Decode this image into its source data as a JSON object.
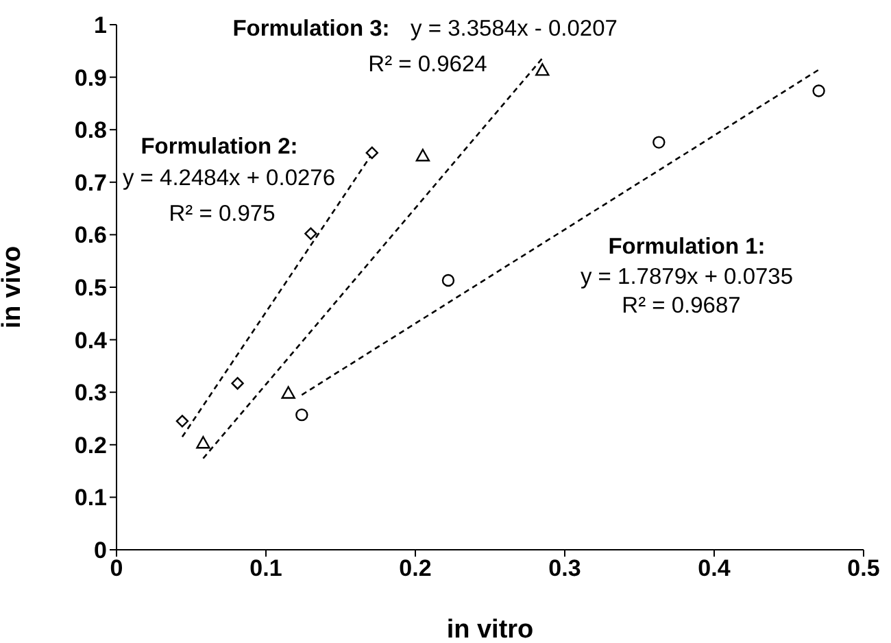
{
  "chart_data": {
    "type": "scatter",
    "xlabel": "in vitro",
    "ylabel": "in vivo",
    "xlim": [
      0,
      0.5
    ],
    "xticks": [
      0,
      0.1,
      0.2,
      0.3,
      0.4,
      0.5
    ],
    "ylim": [
      0,
      1
    ],
    "yticks": [
      0,
      0.1,
      0.2,
      0.3,
      0.4,
      0.5,
      0.6,
      0.7,
      0.8,
      0.9,
      1
    ],
    "grid": false,
    "legend": false,
    "series": [
      {
        "marker": "circle",
        "color": "#000000",
        "x": [
          0.124,
          0.222,
          0.363,
          0.47
        ],
        "values": [
          0.257,
          0.513,
          0.776,
          0.874
        ]
      },
      {
        "marker": "diamond",
        "color": "#000000",
        "x": [
          0.044,
          0.081,
          0.13,
          0.171
        ],
        "values": [
          0.245,
          0.317,
          0.602,
          0.756
        ]
      },
      {
        "marker": "triangle",
        "color": "#000000",
        "x": [
          0.058,
          0.115,
          0.205,
          0.285
        ],
        "values": [
          0.202,
          0.297,
          0.749,
          0.912
        ]
      },
      {
        "type": "line",
        "marker": "none",
        "line_style": "dashed",
        "color": "#000000",
        "x": [
          0.124,
          0.471
        ],
        "values": [
          0.295,
          0.916
        ]
      },
      {
        "type": "line",
        "marker": "none",
        "line_style": "dashed",
        "color": "#000000",
        "x": [
          0.044,
          0.172
        ],
        "values": [
          0.215,
          0.758
        ]
      },
      {
        "type": "line",
        "marker": "none",
        "line_style": "dashed",
        "color": "#000000",
        "x": [
          0.058,
          0.285
        ],
        "values": [
          0.174,
          0.936
        ]
      }
    ],
    "annotations": [
      "Formulation 1:",
      "y = 1.7879x + 0.0735",
      "R² = 0.9687",
      "Formulation 2:",
      "y = 4.2484x + 0.0276",
      "R² = 0.975",
      "Formulation 3:",
      "y = 3.3584x - 0.0207",
      "R² = 0.9624"
    ]
  }
}
